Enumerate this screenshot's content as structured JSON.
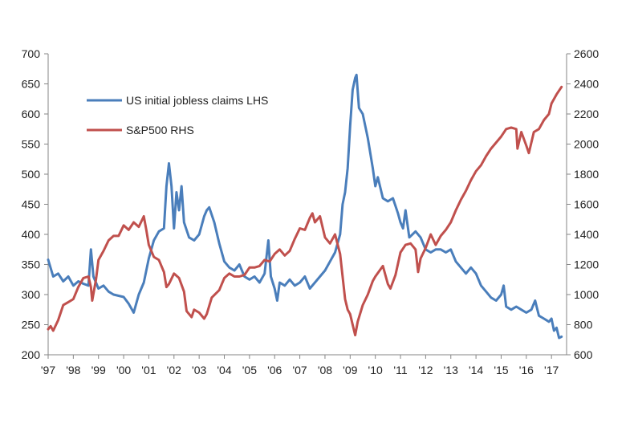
{
  "chart_data": {
    "type": "line",
    "title": "",
    "x_tick_labels": [
      "'97",
      "'98",
      "'99",
      "'00",
      "'01",
      "'02",
      "'03",
      "'04",
      "'05",
      "'06",
      "'07",
      "'08",
      "'09",
      "'10",
      "'11",
      "'12",
      "'13",
      "'14",
      "'15",
      "'16",
      "'17"
    ],
    "xlim": [
      1997,
      2017.6
    ],
    "y_left": {
      "ylim": [
        200,
        700
      ],
      "ticks": [
        200,
        250,
        300,
        350,
        400,
        450,
        500,
        550,
        600,
        650,
        700
      ]
    },
    "y_right": {
      "ylim": [
        600,
        2600
      ],
      "ticks": [
        600,
        800,
        1000,
        1200,
        1400,
        1600,
        1800,
        2000,
        2200,
        2400,
        2600
      ]
    },
    "grid": false,
    "legend_placement": "top-left",
    "series": [
      {
        "name": "US initial jobless claims LHS",
        "axis": "left",
        "color": "#4a7ebb",
        "points": [
          [
            1997.0,
            358
          ],
          [
            1997.2,
            330
          ],
          [
            1997.4,
            335
          ],
          [
            1997.6,
            322
          ],
          [
            1997.8,
            330
          ],
          [
            1998.0,
            315
          ],
          [
            1998.2,
            322
          ],
          [
            1998.4,
            318
          ],
          [
            1998.6,
            315
          ],
          [
            1998.7,
            375
          ],
          [
            1998.8,
            330
          ],
          [
            1999.0,
            310
          ],
          [
            1999.2,
            315
          ],
          [
            1999.4,
            305
          ],
          [
            1999.6,
            300
          ],
          [
            1999.8,
            298
          ],
          [
            2000.0,
            296
          ],
          [
            2000.2,
            285
          ],
          [
            2000.4,
            270
          ],
          [
            2000.6,
            300
          ],
          [
            2000.8,
            320
          ],
          [
            2001.0,
            360
          ],
          [
            2001.2,
            390
          ],
          [
            2001.4,
            405
          ],
          [
            2001.6,
            410
          ],
          [
            2001.7,
            480
          ],
          [
            2001.8,
            518
          ],
          [
            2001.9,
            480
          ],
          [
            2002.0,
            410
          ],
          [
            2002.1,
            470
          ],
          [
            2002.2,
            440
          ],
          [
            2002.3,
            480
          ],
          [
            2002.4,
            420
          ],
          [
            2002.6,
            395
          ],
          [
            2002.8,
            390
          ],
          [
            2003.0,
            400
          ],
          [
            2003.2,
            430
          ],
          [
            2003.3,
            440
          ],
          [
            2003.4,
            445
          ],
          [
            2003.6,
            420
          ],
          [
            2003.8,
            385
          ],
          [
            2004.0,
            355
          ],
          [
            2004.2,
            345
          ],
          [
            2004.4,
            340
          ],
          [
            2004.6,
            350
          ],
          [
            2004.8,
            330
          ],
          [
            2005.0,
            325
          ],
          [
            2005.2,
            330
          ],
          [
            2005.4,
            320
          ],
          [
            2005.6,
            335
          ],
          [
            2005.75,
            390
          ],
          [
            2005.85,
            330
          ],
          [
            2006.0,
            310
          ],
          [
            2006.1,
            290
          ],
          [
            2006.2,
            320
          ],
          [
            2006.4,
            315
          ],
          [
            2006.6,
            325
          ],
          [
            2006.8,
            315
          ],
          [
            2007.0,
            320
          ],
          [
            2007.2,
            330
          ],
          [
            2007.4,
            310
          ],
          [
            2007.6,
            320
          ],
          [
            2007.8,
            330
          ],
          [
            2008.0,
            340
          ],
          [
            2008.2,
            355
          ],
          [
            2008.4,
            370
          ],
          [
            2008.6,
            400
          ],
          [
            2008.7,
            450
          ],
          [
            2008.8,
            470
          ],
          [
            2008.9,
            510
          ],
          [
            2009.0,
            580
          ],
          [
            2009.1,
            640
          ],
          [
            2009.2,
            660
          ],
          [
            2009.25,
            665
          ],
          [
            2009.35,
            610
          ],
          [
            2009.5,
            600
          ],
          [
            2009.7,
            560
          ],
          [
            2009.9,
            510
          ],
          [
            2010.0,
            480
          ],
          [
            2010.1,
            495
          ],
          [
            2010.3,
            460
          ],
          [
            2010.5,
            455
          ],
          [
            2010.7,
            460
          ],
          [
            2010.9,
            435
          ],
          [
            2011.0,
            420
          ],
          [
            2011.1,
            410
          ],
          [
            2011.2,
            440
          ],
          [
            2011.35,
            395
          ],
          [
            2011.6,
            405
          ],
          [
            2011.8,
            395
          ],
          [
            2012.0,
            375
          ],
          [
            2012.2,
            370
          ],
          [
            2012.4,
            375
          ],
          [
            2012.6,
            375
          ],
          [
            2012.8,
            370
          ],
          [
            2013.0,
            375
          ],
          [
            2013.2,
            355
          ],
          [
            2013.4,
            345
          ],
          [
            2013.6,
            335
          ],
          [
            2013.8,
            345
          ],
          [
            2014.0,
            335
          ],
          [
            2014.2,
            315
          ],
          [
            2014.4,
            305
          ],
          [
            2014.6,
            295
          ],
          [
            2014.8,
            290
          ],
          [
            2015.0,
            300
          ],
          [
            2015.1,
            315
          ],
          [
            2015.2,
            280
          ],
          [
            2015.4,
            275
          ],
          [
            2015.6,
            280
          ],
          [
            2015.8,
            275
          ],
          [
            2016.0,
            270
          ],
          [
            2016.2,
            275
          ],
          [
            2016.35,
            290
          ],
          [
            2016.5,
            265
          ],
          [
            2016.7,
            260
          ],
          [
            2016.9,
            255
          ],
          [
            2017.0,
            260
          ],
          [
            2017.1,
            240
          ],
          [
            2017.2,
            245
          ],
          [
            2017.3,
            228
          ],
          [
            2017.4,
            230
          ]
        ]
      },
      {
        "name": "S&P500 RHS",
        "axis": "right",
        "color": "#c0504d",
        "points": [
          [
            1997.0,
            770
          ],
          [
            1997.1,
            790
          ],
          [
            1997.2,
            760
          ],
          [
            1997.4,
            830
          ],
          [
            1997.6,
            930
          ],
          [
            1997.8,
            950
          ],
          [
            1998.0,
            970
          ],
          [
            1998.2,
            1050
          ],
          [
            1998.4,
            1110
          ],
          [
            1998.6,
            1120
          ],
          [
            1998.7,
            1050
          ],
          [
            1998.75,
            960
          ],
          [
            1998.9,
            1100
          ],
          [
            1999.0,
            1230
          ],
          [
            1999.2,
            1290
          ],
          [
            1999.4,
            1360
          ],
          [
            1999.6,
            1390
          ],
          [
            1999.8,
            1390
          ],
          [
            2000.0,
            1460
          ],
          [
            2000.2,
            1430
          ],
          [
            2000.4,
            1480
          ],
          [
            2000.6,
            1450
          ],
          [
            2000.8,
            1520
          ],
          [
            2000.9,
            1430
          ],
          [
            2001.0,
            1330
          ],
          [
            2001.2,
            1250
          ],
          [
            2001.4,
            1230
          ],
          [
            2001.6,
            1150
          ],
          [
            2001.7,
            1050
          ],
          [
            2001.8,
            1070
          ],
          [
            2002.0,
            1140
          ],
          [
            2002.2,
            1110
          ],
          [
            2002.4,
            1020
          ],
          [
            2002.5,
            890
          ],
          [
            2002.7,
            850
          ],
          [
            2002.8,
            900
          ],
          [
            2003.0,
            880
          ],
          [
            2003.2,
            840
          ],
          [
            2003.3,
            870
          ],
          [
            2003.5,
            980
          ],
          [
            2003.8,
            1030
          ],
          [
            2004.0,
            1110
          ],
          [
            2004.2,
            1140
          ],
          [
            2004.4,
            1120
          ],
          [
            2004.6,
            1120
          ],
          [
            2004.8,
            1130
          ],
          [
            2005.0,
            1180
          ],
          [
            2005.2,
            1180
          ],
          [
            2005.4,
            1190
          ],
          [
            2005.6,
            1230
          ],
          [
            2005.8,
            1220
          ],
          [
            2006.0,
            1270
          ],
          [
            2006.2,
            1300
          ],
          [
            2006.4,
            1260
          ],
          [
            2006.6,
            1290
          ],
          [
            2006.8,
            1370
          ],
          [
            2007.0,
            1440
          ],
          [
            2007.2,
            1430
          ],
          [
            2007.4,
            1510
          ],
          [
            2007.5,
            1540
          ],
          [
            2007.6,
            1480
          ],
          [
            2007.8,
            1520
          ],
          [
            2008.0,
            1380
          ],
          [
            2008.2,
            1340
          ],
          [
            2008.4,
            1400
          ],
          [
            2008.6,
            1270
          ],
          [
            2008.8,
            970
          ],
          [
            2008.9,
            900
          ],
          [
            2009.0,
            870
          ],
          [
            2009.1,
            800
          ],
          [
            2009.2,
            730
          ],
          [
            2009.3,
            820
          ],
          [
            2009.5,
            930
          ],
          [
            2009.7,
            1000
          ],
          [
            2009.9,
            1090
          ],
          [
            2010.0,
            1120
          ],
          [
            2010.3,
            1190
          ],
          [
            2010.5,
            1070
          ],
          [
            2010.6,
            1040
          ],
          [
            2010.8,
            1130
          ],
          [
            2011.0,
            1280
          ],
          [
            2011.2,
            1330
          ],
          [
            2011.4,
            1340
          ],
          [
            2011.6,
            1300
          ],
          [
            2011.7,
            1150
          ],
          [
            2011.8,
            1240
          ],
          [
            2012.0,
            1310
          ],
          [
            2012.2,
            1400
          ],
          [
            2012.4,
            1330
          ],
          [
            2012.6,
            1390
          ],
          [
            2012.8,
            1430
          ],
          [
            2013.0,
            1480
          ],
          [
            2013.2,
            1560
          ],
          [
            2013.4,
            1630
          ],
          [
            2013.6,
            1690
          ],
          [
            2013.8,
            1760
          ],
          [
            2014.0,
            1820
          ],
          [
            2014.2,
            1860
          ],
          [
            2014.4,
            1920
          ],
          [
            2014.6,
            1970
          ],
          [
            2014.8,
            2010
          ],
          [
            2015.0,
            2050
          ],
          [
            2015.2,
            2100
          ],
          [
            2015.4,
            2110
          ],
          [
            2015.6,
            2100
          ],
          [
            2015.65,
            1970
          ],
          [
            2015.8,
            2080
          ],
          [
            2016.0,
            1990
          ],
          [
            2016.1,
            1940
          ],
          [
            2016.3,
            2080
          ],
          [
            2016.5,
            2100
          ],
          [
            2016.7,
            2160
          ],
          [
            2016.9,
            2200
          ],
          [
            2017.0,
            2270
          ],
          [
            2017.2,
            2330
          ],
          [
            2017.4,
            2380
          ]
        ]
      }
    ]
  }
}
